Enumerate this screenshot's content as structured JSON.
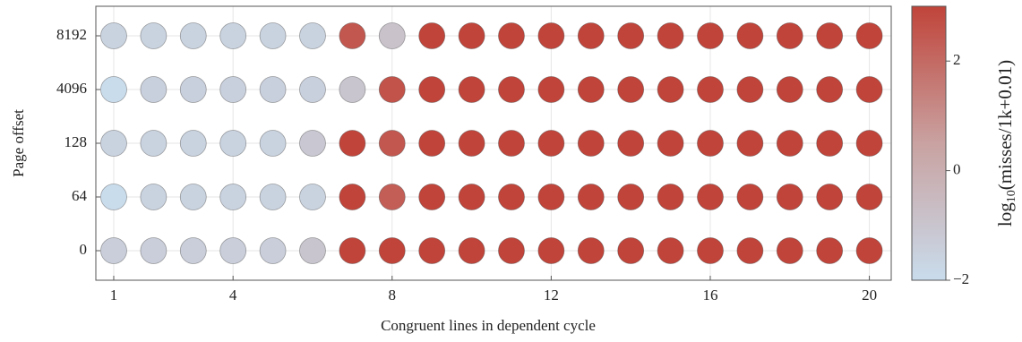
{
  "chart_data": {
    "type": "scatter",
    "xlabel": "Congruent lines in dependent cycle",
    "ylabel": "Page offset",
    "x": [
      1,
      2,
      3,
      4,
      5,
      6,
      7,
      8,
      9,
      10,
      11,
      12,
      13,
      14,
      15,
      16,
      17,
      18,
      19,
      20
    ],
    "xlim": [
      0.55,
      20.55
    ],
    "xticks": [
      1,
      4,
      8,
      12,
      16,
      20
    ],
    "categories": [
      "0",
      "64",
      "128",
      "4096",
      "8192"
    ],
    "z": [
      [
        -1.4,
        -1.4,
        -1.4,
        -1.4,
        -1.4,
        -1.0,
        3,
        3,
        3,
        3,
        3,
        3,
        3,
        3,
        3,
        3,
        3,
        3,
        3,
        3
      ],
      [
        -2,
        -1.6,
        -1.6,
        -1.6,
        -1.6,
        -1.6,
        3,
        2.3,
        3,
        3,
        3,
        3,
        3,
        3,
        3,
        3,
        3,
        3,
        3,
        3
      ],
      [
        -1.6,
        -1.6,
        -1.6,
        -1.6,
        -1.6,
        -1.1,
        3,
        2.5,
        3,
        3,
        3,
        3,
        3,
        3,
        3,
        3,
        3,
        3,
        3,
        3
      ],
      [
        -2,
        -1.5,
        -1.5,
        -1.5,
        -1.5,
        -1.5,
        -1.0,
        2.6,
        3,
        3,
        3,
        3,
        3,
        3,
        3,
        3,
        3,
        3,
        3,
        3
      ],
      [
        -1.6,
        -1.6,
        -1.6,
        -1.6,
        -1.6,
        -1.6,
        2.5,
        -0.9,
        3,
        3,
        3,
        3,
        3,
        3,
        3,
        3,
        3,
        3,
        3,
        3
      ]
    ],
    "grid": true,
    "colorbar": {
      "label": [
        "log",
        "10",
        "(misses/1k+0.01)"
      ],
      "clim": [
        -2,
        3
      ],
      "ticks": [
        {
          "value": -2,
          "label": "−2"
        },
        0,
        2
      ],
      "colors": [
        "#c9dcec",
        "#c9a2a1",
        "#c0443a"
      ]
    }
  }
}
